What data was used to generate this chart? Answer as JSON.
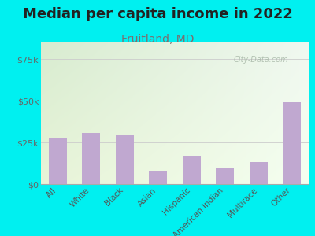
{
  "title": "Median per capita income in 2022",
  "subtitle": "Fruitland, MD",
  "categories": [
    "All",
    "White",
    "Black",
    "Asian",
    "Hispanic",
    "American Indian",
    "Multirace",
    "Other"
  ],
  "values": [
    28000,
    30500,
    29500,
    7500,
    17000,
    9500,
    13000,
    49000
  ],
  "bar_color": "#c0a8d0",
  "background_outer": "#00f0f0",
  "background_grad_top_left": "#d8ecd0",
  "background_grad_top_right": "#f0f8f0",
  "background_grad_bottom": "#e8f4d8",
  "title_color": "#222222",
  "subtitle_color": "#7a6e6e",
  "tick_label_color": "#555555",
  "axis_label_color": "#666666",
  "ylim": [
    0,
    85000
  ],
  "yticks": [
    0,
    25000,
    50000,
    75000
  ],
  "ytick_labels": [
    "$0",
    "$25k",
    "$50k",
    "$75k"
  ],
  "watermark": "City-Data.com",
  "title_fontsize": 13,
  "subtitle_fontsize": 10
}
